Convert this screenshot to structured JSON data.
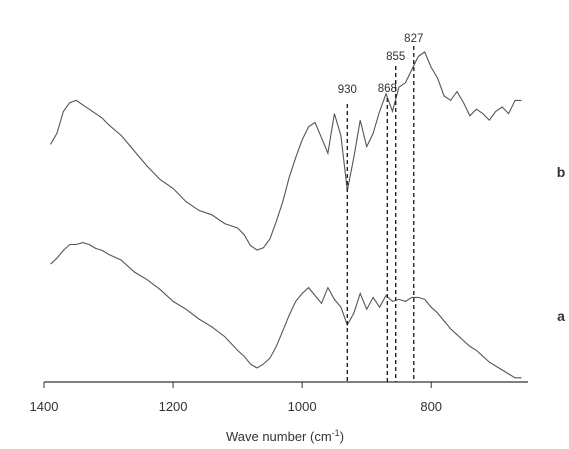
{
  "chart_data": {
    "type": "line",
    "title": "",
    "xlabel_main": "Wave number (cm",
    "xlabel_sup": "-1",
    "xlabel_close": ")",
    "ylabel": "",
    "xlim": [
      1400,
      650
    ],
    "x_reversed": true,
    "xticks": [
      1400,
      1200,
      1000,
      800
    ],
    "grid": false,
    "series": [
      {
        "name": "b",
        "x": [
          1390,
          1380,
          1370,
          1360,
          1350,
          1340,
          1330,
          1320,
          1310,
          1300,
          1280,
          1260,
          1240,
          1220,
          1200,
          1180,
          1160,
          1140,
          1120,
          1100,
          1090,
          1080,
          1070,
          1060,
          1050,
          1040,
          1030,
          1020,
          1010,
          1000,
          990,
          980,
          970,
          960,
          950,
          940,
          930,
          920,
          910,
          900,
          890,
          880,
          870,
          860,
          850,
          840,
          830,
          820,
          810,
          800,
          790,
          780,
          770,
          760,
          750,
          740,
          730,
          720,
          710,
          700,
          690,
          680,
          670,
          660
        ],
        "y": [
          0.58,
          0.63,
          0.73,
          0.77,
          0.78,
          0.76,
          0.74,
          0.72,
          0.7,
          0.67,
          0.62,
          0.55,
          0.48,
          0.42,
          0.38,
          0.32,
          0.28,
          0.26,
          0.22,
          0.2,
          0.17,
          0.12,
          0.1,
          0.11,
          0.15,
          0.23,
          0.32,
          0.43,
          0.52,
          0.6,
          0.66,
          0.68,
          0.61,
          0.54,
          0.72,
          0.62,
          0.37,
          0.52,
          0.69,
          0.57,
          0.63,
          0.73,
          0.81,
          0.73,
          0.84,
          0.86,
          0.92,
          0.98,
          1.0,
          0.93,
          0.88,
          0.8,
          0.78,
          0.82,
          0.77,
          0.71,
          0.74,
          0.72,
          0.69,
          0.73,
          0.75,
          0.72,
          0.78,
          0.78
        ]
      },
      {
        "name": "a",
        "x": [
          1390,
          1380,
          1370,
          1360,
          1350,
          1340,
          1330,
          1320,
          1310,
          1300,
          1280,
          1260,
          1240,
          1220,
          1200,
          1180,
          1160,
          1140,
          1120,
          1100,
          1090,
          1080,
          1070,
          1060,
          1050,
          1040,
          1030,
          1020,
          1010,
          1000,
          990,
          980,
          970,
          960,
          950,
          940,
          930,
          920,
          910,
          900,
          890,
          880,
          870,
          860,
          850,
          840,
          830,
          820,
          810,
          800,
          790,
          780,
          770,
          760,
          750,
          740,
          730,
          720,
          710,
          700,
          690,
          680,
          670,
          660
        ],
        "y": [
          0.53,
          0.56,
          0.6,
          0.63,
          0.63,
          0.64,
          0.63,
          0.61,
          0.6,
          0.58,
          0.55,
          0.49,
          0.45,
          0.4,
          0.34,
          0.3,
          0.25,
          0.21,
          0.16,
          0.09,
          0.06,
          0.02,
          0.0,
          0.02,
          0.05,
          0.11,
          0.19,
          0.27,
          0.34,
          0.38,
          0.41,
          0.37,
          0.33,
          0.41,
          0.35,
          0.31,
          0.22,
          0.28,
          0.38,
          0.3,
          0.36,
          0.31,
          0.37,
          0.34,
          0.35,
          0.34,
          0.36,
          0.36,
          0.35,
          0.31,
          0.28,
          0.24,
          0.2,
          0.17,
          0.14,
          0.11,
          0.09,
          0.06,
          0.03,
          0.01,
          -0.01,
          -0.03,
          -0.05,
          -0.05
        ]
      }
    ],
    "markers": [
      {
        "x": 930,
        "label": "930"
      },
      {
        "x": 868,
        "label": "868"
      },
      {
        "x": 855,
        "label": "855"
      },
      {
        "x": 827,
        "label": "827"
      }
    ]
  }
}
